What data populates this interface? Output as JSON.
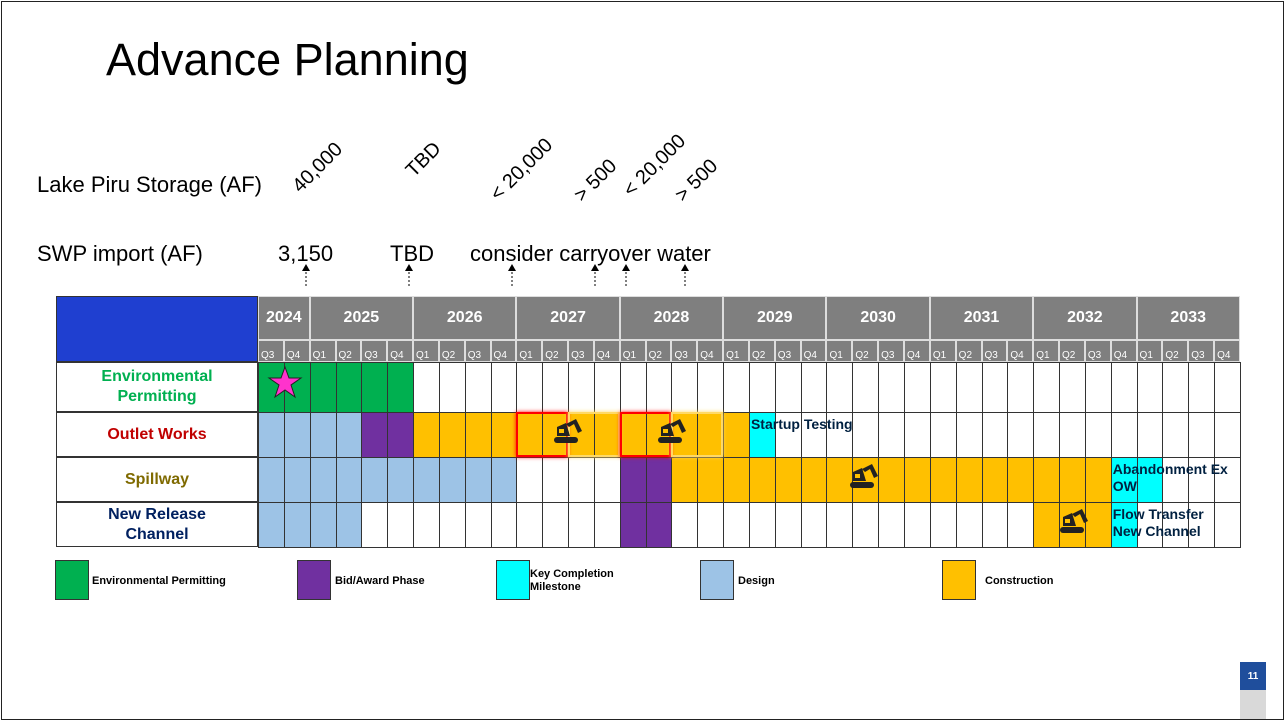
{
  "title": "Advance Planning",
  "storage": {
    "label": "Lake Piru Storage (AF)",
    "values": [
      "40,000",
      "TBD",
      "< 20,000",
      "> 500",
      "< 20,000",
      "> 500"
    ]
  },
  "swp": {
    "label": "SWP import (AF)",
    "values": [
      "3,150",
      "TBD",
      "consider carryover water"
    ]
  },
  "table": {
    "years": [
      "2024",
      "2025",
      "2026",
      "2027",
      "2028",
      "2029",
      "2030",
      "2031",
      "2032",
      "2033"
    ],
    "quarters": [
      "Q3",
      "Q4",
      "Q1",
      "Q2",
      "Q3",
      "Q4",
      "Q1",
      "Q2",
      "Q3",
      "Q4",
      "Q1",
      "Q2",
      "Q3",
      "Q4",
      "Q1",
      "Q2",
      "Q3",
      "Q4",
      "Q1",
      "Q2",
      "Q3",
      "Q4",
      "Q1",
      "Q2",
      "Q3",
      "Q4",
      "Q1",
      "Q2",
      "Q3",
      "Q4",
      "Q1",
      "Q2",
      "Q3",
      "Q4",
      "Q1",
      "Q2",
      "Q3",
      "Q4"
    ],
    "rows": [
      {
        "label": "Environmental Permitting",
        "color": "#00b050",
        "segments": [
          {
            "phase": 0,
            "start": 0,
            "end": 5
          }
        ]
      },
      {
        "label": "Outlet Works",
        "color": "#c00000",
        "segments": [
          {
            "phase": 3,
            "start": 0,
            "end": 3
          },
          {
            "phase": 1,
            "start": 4,
            "end": 5
          },
          {
            "phase": 4,
            "start": 6,
            "end": 18
          },
          {
            "phase": 2,
            "start": 19,
            "end": 19,
            "label": "Startup Testing"
          }
        ]
      },
      {
        "label": "Spillway",
        "color": "#7f6a00",
        "segments": [
          {
            "phase": 3,
            "start": 0,
            "end": 9
          },
          {
            "phase": 1,
            "start": 14,
            "end": 15
          },
          {
            "phase": 4,
            "start": 16,
            "end": 32
          },
          {
            "phase": 2,
            "start": 33,
            "end": 34,
            "label": "Abandonment Ex OW"
          }
        ]
      },
      {
        "label": "New Release Channel",
        "color": "#002060",
        "segments": [
          {
            "phase": 3,
            "start": 0,
            "end": 3
          },
          {
            "phase": 1,
            "start": 14,
            "end": 15
          },
          {
            "phase": 4,
            "start": 30,
            "end": 32
          },
          {
            "phase": 2,
            "start": 33,
            "end": 33,
            "label": "Flow Transfer New Channel"
          }
        ]
      }
    ]
  },
  "legend": [
    {
      "label": "Environmental Permitting",
      "color": "#00b050"
    },
    {
      "label": "Bid/Award Phase",
      "color": "#7030a0"
    },
    {
      "label": "Key Completion Milestone",
      "color": "#00ffff"
    },
    {
      "label": "Design",
      "color": "#9dc3e6"
    },
    {
      "label": "Construction",
      "color": "#ffc000"
    }
  ],
  "page_number": "11"
}
